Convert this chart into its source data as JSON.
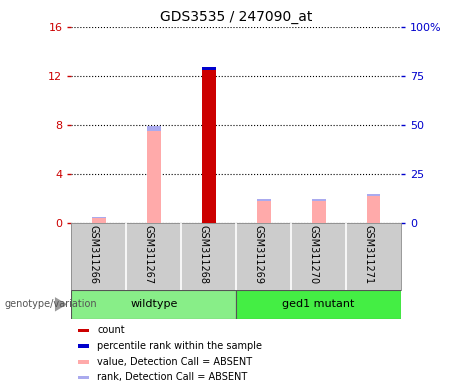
{
  "title": "GDS3535 / 247090_at",
  "samples": [
    "GSM311266",
    "GSM311267",
    "GSM311268",
    "GSM311269",
    "GSM311270",
    "GSM311271"
  ],
  "left_ylim": [
    0,
    16
  ],
  "left_yticks": [
    0,
    4,
    8,
    12,
    16
  ],
  "right_ylim": [
    0,
    100
  ],
  "right_yticks": [
    0,
    25,
    50,
    75,
    100
  ],
  "right_yticklabels": [
    "0",
    "25",
    "50",
    "75",
    "100%"
  ],
  "left_ycolor": "#cc0000",
  "right_ycolor": "#0000cc",
  "count_color": "#cc0000",
  "rank_color": "#0000cc",
  "value_absent_color": "#ffaaaa",
  "rank_absent_color": "#aaaaee",
  "bar_width": 0.25,
  "data": {
    "GSM311266": {
      "count": 0.0,
      "rank": 0.0,
      "value_absent": 0.35,
      "rank_absent": 0.55
    },
    "GSM311267": {
      "count": 0.0,
      "rank": 0.0,
      "value_absent": 7.5,
      "rank_absent": 2.5
    },
    "GSM311268": {
      "count": 12.5,
      "rank": 1.4,
      "value_absent": 0.0,
      "rank_absent": 0.0
    },
    "GSM311269": {
      "count": 0.0,
      "rank": 0.0,
      "value_absent": 1.8,
      "rank_absent": 0.7
    },
    "GSM311270": {
      "count": 0.0,
      "rank": 0.0,
      "value_absent": 1.8,
      "rank_absent": 0.7
    },
    "GSM311271": {
      "count": 0.0,
      "rank": 0.0,
      "value_absent": 2.2,
      "rank_absent": 0.8
    }
  },
  "groups": [
    {
      "name": "wildtype",
      "start": 0,
      "end": 3,
      "color": "#88ee88"
    },
    {
      "name": "ged1 mutant",
      "start": 3,
      "end": 6,
      "color": "#44ee44"
    }
  ],
  "legend_items": [
    {
      "label": "count",
      "color": "#cc0000"
    },
    {
      "label": "percentile rank within the sample",
      "color": "#0000cc"
    },
    {
      "label": "value, Detection Call = ABSENT",
      "color": "#ffaaaa"
    },
    {
      "label": "rank, Detection Call = ABSENT",
      "color": "#aaaaee"
    }
  ],
  "genotype_label": "genotype/variation",
  "bg_gray": "#cccccc",
  "green_light": "#99ee99",
  "green_dark": "#44dd44",
  "plot_bg": "#ffffff"
}
